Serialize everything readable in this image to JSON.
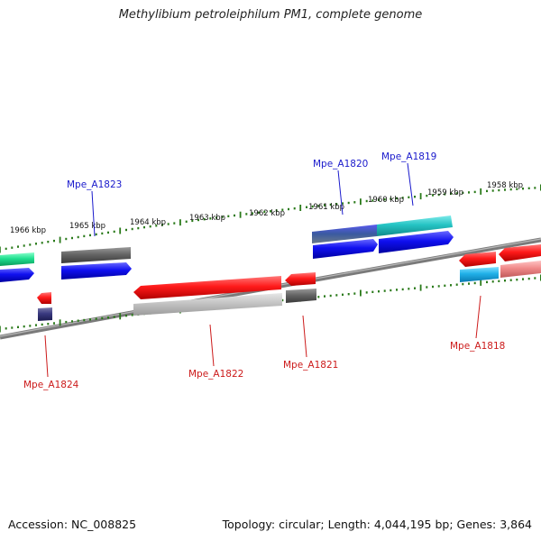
{
  "title": "Methylibium petroleiphilum PM1, complete genome",
  "footer": {
    "accession": "Accession: NC_008825",
    "topology": "Topology: circular; Length: 4,044,195 bp; Genes: 3,864"
  },
  "colors": {
    "backbone": "#7a7a7a",
    "tick": "#2a7a1a",
    "label_top": "#1a1acc",
    "label_bottom": "#cc1a1a"
  },
  "ruler": {
    "unit": "kbp",
    "labels": [
      "1966 kbp",
      "1965 kbp",
      "1964 kbp",
      "1963 kbp",
      "1962 kbp",
      "1961 kbp",
      "1960 kbp",
      "1959 kbp",
      "1958 kbp"
    ]
  },
  "genes": {
    "top": [
      "Mpe_A1823",
      "Mpe_A1820",
      "Mpe_A1819"
    ],
    "bottom": [
      "Mpe_A1824",
      "Mpe_A1822",
      "Mpe_A1821",
      "Mpe_A1818"
    ]
  }
}
